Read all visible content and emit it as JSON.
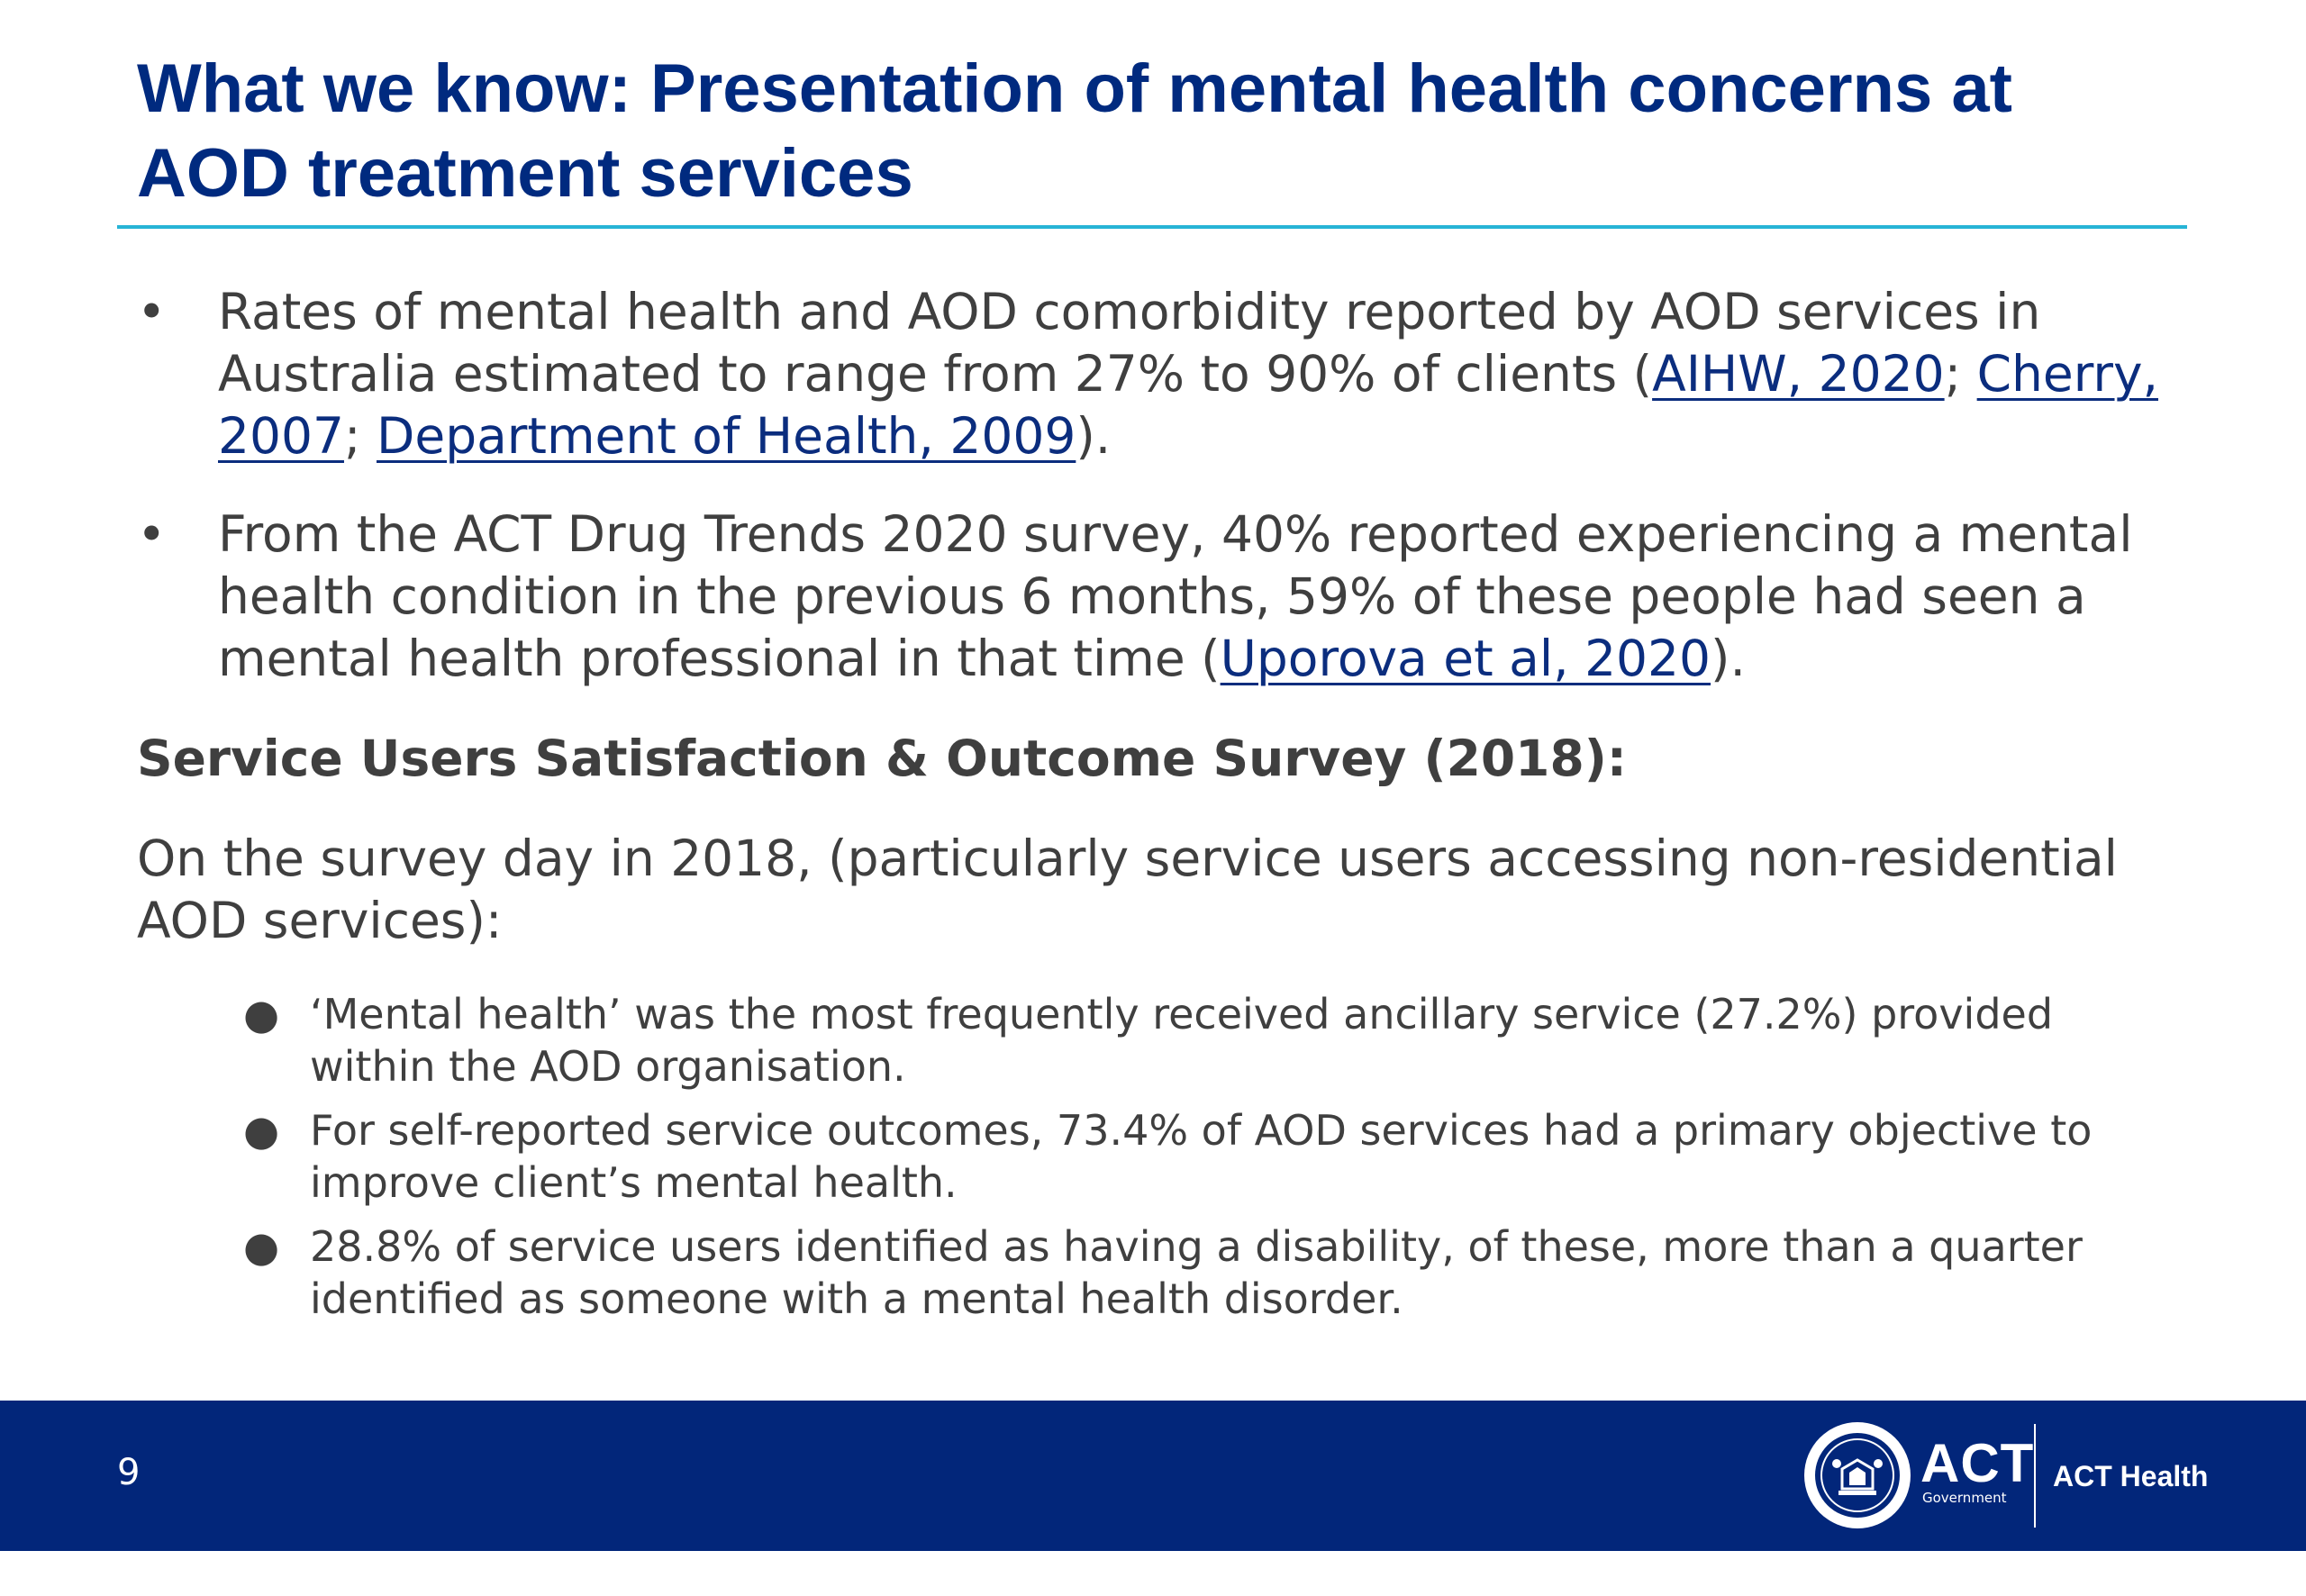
{
  "slide": {
    "title_line1": "What we know: Presentation of mental health concerns at",
    "title_line2": "AOD treatment services"
  },
  "bullets": [
    {
      "marker": "•",
      "text_a": "Rates of mental health and AOD comorbidity reported by AOD services in Australia estimated to range from 27% to 90% of clients (",
      "link1": "AIHW, 2020",
      "sep1": "; ",
      "link2": "Cherry, 2007",
      "sep2": "; ",
      "link3": "Department of Health, 2009",
      "text_end": ")."
    },
    {
      "marker": "•",
      "text_a": "From the ACT Drug Trends 2020 survey, 40% reported experiencing a mental health condition in the previous 6 months, 59% of these people had seen a mental health professional in that time (",
      "link1": "Uporova et al, 2020",
      "text_end": ")."
    }
  ],
  "subheading": "Service Users Satisfaction & Outcome Survey (2018):",
  "intro": "On the survey day in 2018, (particularly service users accessing non-residential AOD services):",
  "sub_bullets": [
    {
      "marker": "●",
      "text": "‘Mental health’ was the most frequently received ancillary service (27.2%) provided within the AOD organisation."
    },
    {
      "marker": "●",
      "text": "For self-reported service outcomes, 73.4% of AOD services had a primary objective to improve client’s mental health."
    },
    {
      "marker": "●",
      "text": "28.8% of service users identified as having a disability, of these, more than a quarter identified as someone with a mental health disorder."
    }
  ],
  "footer": {
    "page_number": "9",
    "logo_name": "ACT",
    "logo_sub": "Government",
    "department": "ACT Health",
    "background_color": "#02267a"
  },
  "colors": {
    "title": "#002a7f",
    "rule": "#27b4d6",
    "body_text": "#3f3f3f",
    "link": "#0b2d7e"
  }
}
